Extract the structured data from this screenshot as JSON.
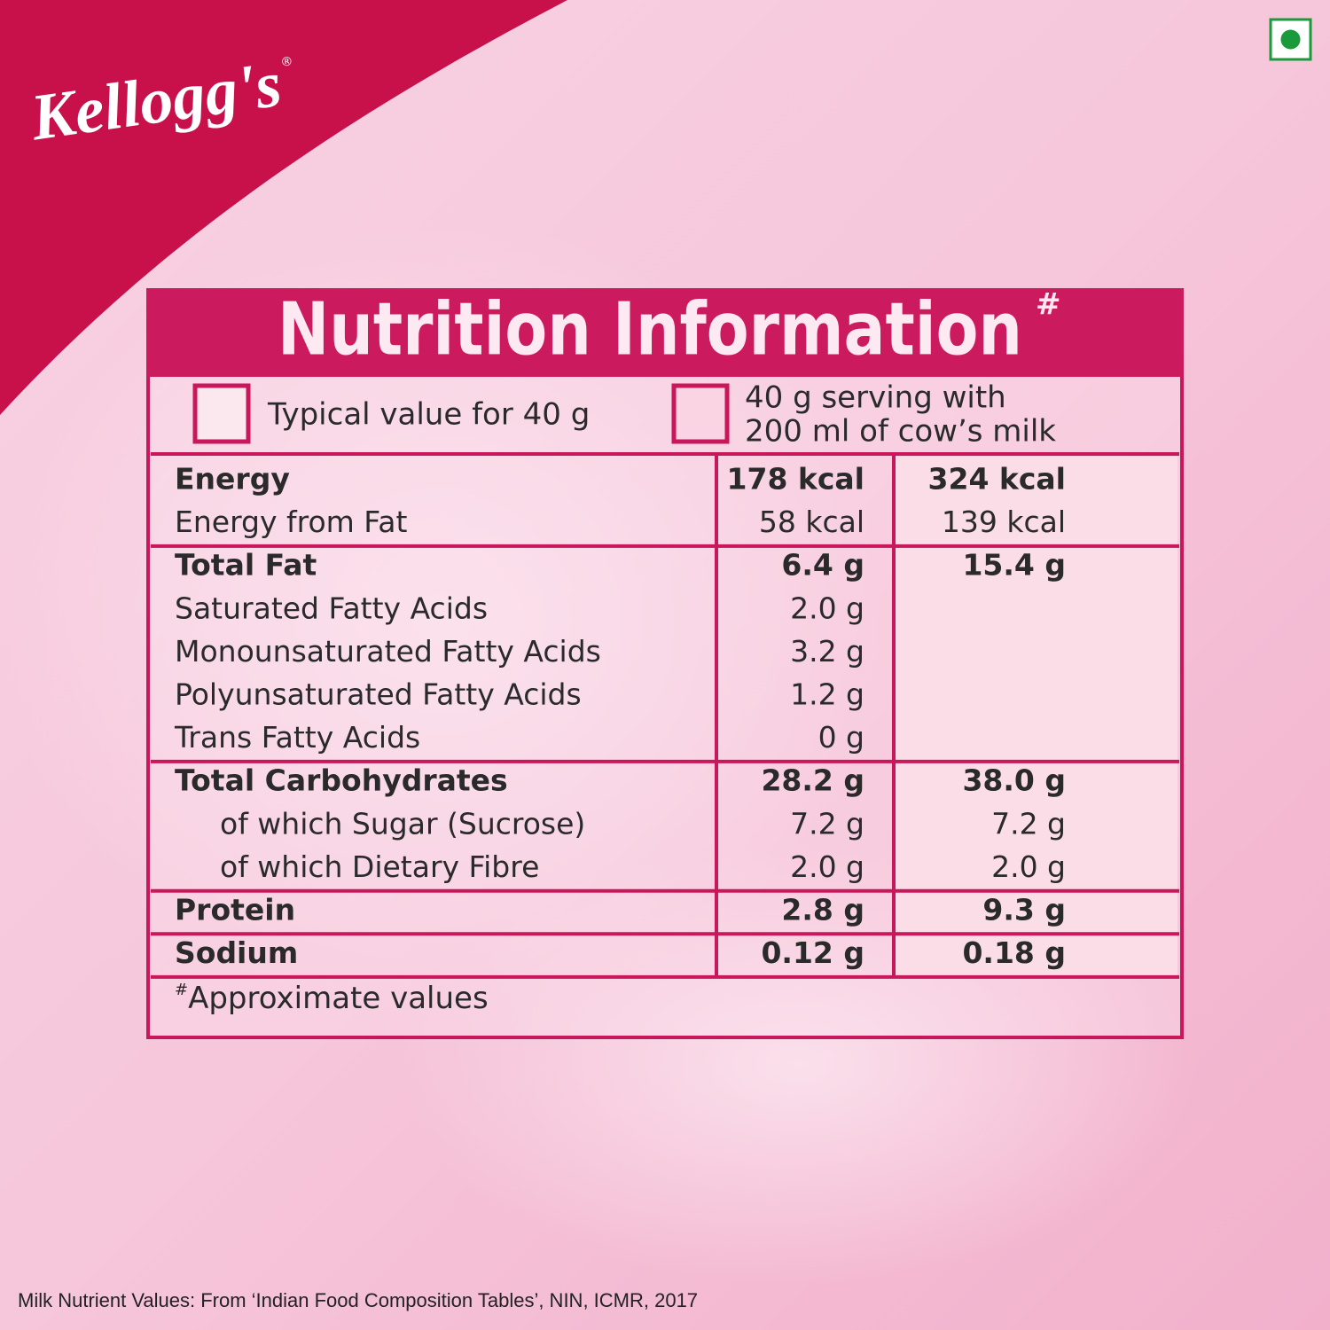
{
  "brand": {
    "name": "Kellogg's",
    "registered": "®"
  },
  "title": {
    "text": "Nutrition Information",
    "mark": "#"
  },
  "columns": [
    {
      "label_lines": [
        "Typical value for 40 g"
      ]
    },
    {
      "label_lines": [
        "40 g serving with",
        "200 ml of cow’s milk"
      ]
    }
  ],
  "table": {
    "groups": [
      {
        "rows": [
          {
            "label": "Energy",
            "bold": true,
            "values": [
              "178 kcal",
              "324 kcal"
            ]
          },
          {
            "label": "Energy from Fat",
            "values": [
              "58 kcal",
              "139 kcal"
            ]
          }
        ]
      },
      {
        "rows": [
          {
            "label": "Total Fat",
            "bold": true,
            "values": [
              "6.4 g",
              "15.4 g"
            ]
          },
          {
            "label": "Saturated Fatty Acids",
            "values": [
              "2.0 g"
            ]
          },
          {
            "label": "Monounsaturated Fatty Acids",
            "values": [
              "3.2 g"
            ]
          },
          {
            "label": "Polyunsaturated Fatty Acids",
            "values": [
              "1.2 g"
            ]
          },
          {
            "label": "Trans Fatty Acids",
            "values": [
              "0 g"
            ]
          }
        ]
      },
      {
        "rows": [
          {
            "label": "Total Carbohydrates",
            "bold": true,
            "values": [
              "28.2 g",
              "38.0 g"
            ]
          },
          {
            "label": "of which Sugar (Sucrose)",
            "indent": true,
            "values": [
              "7.2 g",
              "7.2 g"
            ]
          },
          {
            "label": "of which Dietary Fibre",
            "indent": true,
            "values": [
              "2.0 g",
              "2.0 g"
            ]
          }
        ]
      },
      {
        "rows": [
          {
            "label": "Protein",
            "bold": true,
            "values": [
              "2.8 g",
              "9.3 g"
            ]
          }
        ]
      },
      {
        "rows": [
          {
            "label": "Sodium",
            "bold": true,
            "values": [
              "0.12 g",
              "0.18 g"
            ]
          }
        ]
      }
    ]
  },
  "footnote": {
    "mark": "#",
    "text": "Approximate values"
  },
  "source": "Milk Nutrient Values: From ‘Indian Food Composition Tables’, NIN, ICMR, 2017"
}
